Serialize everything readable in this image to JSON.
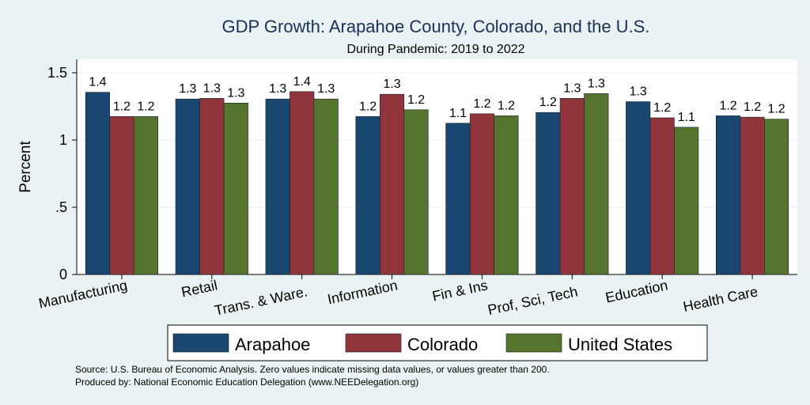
{
  "chart_data": {
    "type": "bar",
    "title": "GDP Growth: Arapahoe County, Colorado, and the U.S.",
    "subtitle": "During Pandemic: 2019 to 2022",
    "ylabel": "Percent",
    "ylim": [
      0,
      1.6
    ],
    "yticks": [
      {
        "value": 0,
        "label": "0"
      },
      {
        "value": 0.5,
        "label": ".5"
      },
      {
        "value": 1,
        "label": "1"
      },
      {
        "value": 1.5,
        "label": "1.5"
      }
    ],
    "grid": true,
    "legend_position": "bottom",
    "categories": [
      "Manufacturing",
      "Retail",
      "Trans. & Ware.",
      "Information",
      "Fin & Ins",
      "Prof, Sci, Tech",
      "Education",
      "Health Care"
    ],
    "series": [
      {
        "name": "Arapahoe",
        "color": "#1a476f",
        "values": [
          1.355,
          1.305,
          1.305,
          1.175,
          1.125,
          1.205,
          1.285,
          1.18
        ],
        "labels": [
          "1.4",
          "1.3",
          "1.3",
          "1.2",
          "1.1",
          "1.2",
          "1.3",
          "1.2"
        ]
      },
      {
        "name": "Colorado",
        "color": "#90353b",
        "values": [
          1.175,
          1.31,
          1.36,
          1.34,
          1.195,
          1.31,
          1.165,
          1.17
        ],
        "labels": [
          "1.2",
          "1.3",
          "1.4",
          "1.3",
          "1.2",
          "1.3",
          "1.2",
          "1.2"
        ]
      },
      {
        "name": "United States",
        "color": "#55752f",
        "values": [
          1.175,
          1.275,
          1.305,
          1.225,
          1.18,
          1.345,
          1.095,
          1.155
        ],
        "labels": [
          "1.2",
          "1.3",
          "1.3",
          "1.2",
          "1.2",
          "1.3",
          "1.1",
          "1.2"
        ]
      }
    ]
  },
  "footer": {
    "source": "Source: U.S. Bureau of Economic Analysis. Zero values indicate missing data values, or values greater than 200.",
    "produced_by": "Produced by: National Economic Education Delegation (www.NEEDelegation.org)"
  },
  "colors": {
    "background": "#eaf2f3",
    "plot_background": "#ffffff",
    "title": "#1a2f5a"
  }
}
